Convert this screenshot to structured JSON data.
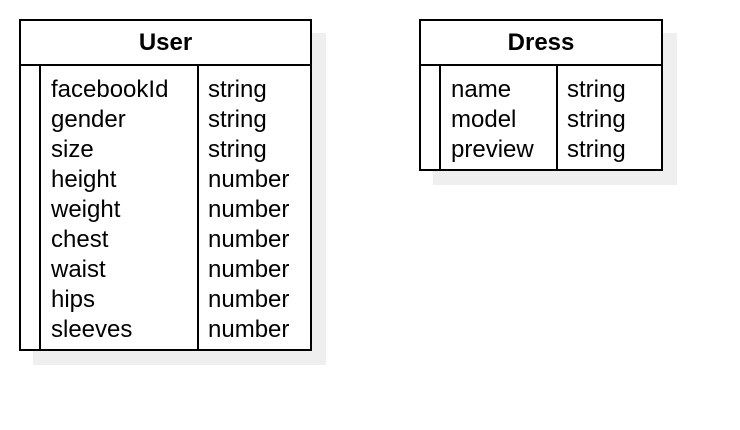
{
  "entities": [
    {
      "name": "User",
      "fields": [
        {
          "name": "facebookId",
          "type": "string"
        },
        {
          "name": "gender",
          "type": "string"
        },
        {
          "name": "size",
          "type": "string"
        },
        {
          "name": "height",
          "type": "number"
        },
        {
          "name": "weight",
          "type": "number"
        },
        {
          "name": "chest",
          "type": "number"
        },
        {
          "name": "waist",
          "type": "number"
        },
        {
          "name": "hips",
          "type": "number"
        },
        {
          "name": "sleeves",
          "type": "number"
        }
      ]
    },
    {
      "name": "Dress",
      "fields": [
        {
          "name": "name",
          "type": "string"
        },
        {
          "name": "model",
          "type": "string"
        },
        {
          "name": "preview",
          "type": "string"
        }
      ]
    }
  ]
}
